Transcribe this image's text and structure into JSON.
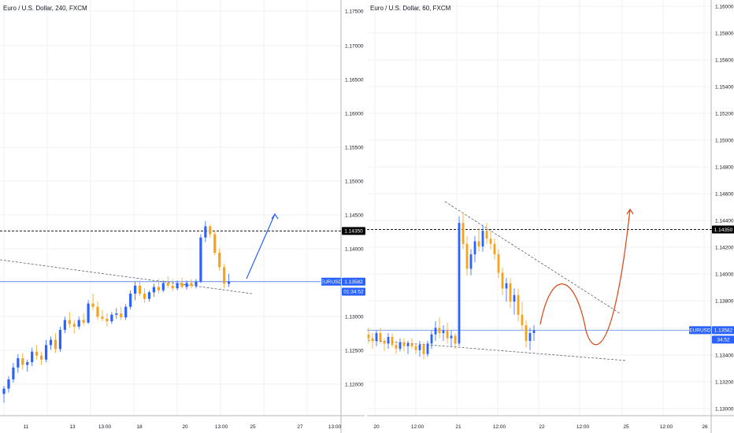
{
  "chart_data": [
    {
      "type": "candlestick",
      "title": "Euro / U.S. Dollar, 240, FXCM",
      "yticks": [
        "1.17500",
        "1.17000",
        "1.16500",
        "1.16000",
        "1.15500",
        "1.15000",
        "1.14500",
        "1.14000",
        "1.13500",
        "1.13000",
        "1.12500",
        "1.12000"
      ],
      "xticks": [
        "11",
        "13",
        "13:00",
        "18",
        "20",
        "13:00",
        "25",
        "27",
        "13:00"
      ],
      "ylim": [
        1.1155,
        1.1785
      ],
      "resistance_level": 1.1435,
      "current_price": 1.13582,
      "badges": [
        {
          "label": "1.14350",
          "value": 1.1435,
          "color": "#000000"
        },
        {
          "label": "EURUSD",
          "value": 1.13582,
          "color": "#2962ff"
        },
        {
          "label": "1.13582",
          "value": 1.13582,
          "color": "#2962ff"
        },
        {
          "label": "01:34:52",
          "value": 1.1343,
          "color": "#2962ff"
        }
      ],
      "candles": [
        [
          1.1188,
          1.12,
          1.1175,
          1.1196
        ],
        [
          1.1196,
          1.1215,
          1.119,
          1.121
        ],
        [
          1.121,
          1.1235,
          1.1205,
          1.1228
        ],
        [
          1.1228,
          1.1248,
          1.122,
          1.1242
        ],
        [
          1.1242,
          1.125,
          1.1225,
          1.1232
        ],
        [
          1.1232,
          1.124,
          1.1222,
          1.1236
        ],
        [
          1.1236,
          1.1258,
          1.123,
          1.1252
        ],
        [
          1.1252,
          1.1262,
          1.124,
          1.1246
        ],
        [
          1.1246,
          1.1252,
          1.1232,
          1.124
        ],
        [
          1.124,
          1.127,
          1.1236,
          1.1262
        ],
        [
          1.1262,
          1.1275,
          1.1255,
          1.127
        ],
        [
          1.127,
          1.128,
          1.125,
          1.1256
        ],
        [
          1.1256,
          1.129,
          1.1252,
          1.1285
        ],
        [
          1.1285,
          1.1305,
          1.128,
          1.13
        ],
        [
          1.13,
          1.1312,
          1.1288,
          1.1294
        ],
        [
          1.1294,
          1.13,
          1.128,
          1.129
        ],
        [
          1.129,
          1.1305,
          1.1286,
          1.13
        ],
        [
          1.13,
          1.131,
          1.1292,
          1.1296
        ],
        [
          1.1296,
          1.133,
          1.1294,
          1.1325
        ],
        [
          1.1325,
          1.134,
          1.1315,
          1.132
        ],
        [
          1.132,
          1.1328,
          1.13,
          1.1305
        ],
        [
          1.1305,
          1.1315,
          1.1298,
          1.1302
        ],
        [
          1.1302,
          1.131,
          1.129,
          1.1298
        ],
        [
          1.1298,
          1.1312,
          1.1294,
          1.1308
        ],
        [
          1.1308,
          1.1318,
          1.1302,
          1.131
        ],
        [
          1.131,
          1.132,
          1.13,
          1.1304
        ],
        [
          1.1304,
          1.1324,
          1.13,
          1.132
        ],
        [
          1.132,
          1.1345,
          1.1316,
          1.134
        ],
        [
          1.134,
          1.1358,
          1.133,
          1.1352
        ],
        [
          1.1352,
          1.136,
          1.1336,
          1.134
        ],
        [
          1.134,
          1.1348,
          1.1326,
          1.1332
        ],
        [
          1.1332,
          1.1345,
          1.1328,
          1.1342
        ],
        [
          1.1342,
          1.1355,
          1.1335,
          1.135
        ],
        [
          1.135,
          1.1362,
          1.134,
          1.1345
        ],
        [
          1.1345,
          1.136,
          1.1342,
          1.1356
        ],
        [
          1.1356,
          1.1366,
          1.1348,
          1.1352
        ],
        [
          1.1352,
          1.1362,
          1.1344,
          1.1348
        ],
        [
          1.1348,
          1.136,
          1.1345,
          1.1356
        ],
        [
          1.1356,
          1.1364,
          1.1348,
          1.135
        ],
        [
          1.135,
          1.136,
          1.1346,
          1.1356
        ],
        [
          1.1356,
          1.1362,
          1.1348,
          1.1352
        ],
        [
          1.1352,
          1.1362,
          1.1348,
          1.1358
        ],
        [
          1.1358,
          1.143,
          1.1356,
          1.1425
        ],
        [
          1.1425,
          1.145,
          1.1418,
          1.1442
        ],
        [
          1.1442,
          1.1445,
          1.1425,
          1.143
        ],
        [
          1.143,
          1.1435,
          1.1398,
          1.1402
        ],
        [
          1.1402,
          1.1408,
          1.1375,
          1.138
        ],
        [
          1.138,
          1.1385,
          1.1348,
          1.1355
        ],
        [
          1.1355,
          1.137,
          1.135,
          1.1358
        ]
      ],
      "annotations": [
        "resistance dashed line",
        "descending dashed trendline",
        "projection arrow up"
      ]
    },
    {
      "type": "candlestick",
      "title": "Euro / U.S. Dollar, 60, FXCM",
      "yticks": [
        "1.16000",
        "1.15800",
        "1.15600",
        "1.15400",
        "1.15200",
        "1.15000",
        "1.14800",
        "1.14600",
        "1.14400",
        "1.14200",
        "1.14000",
        "1.13800",
        "1.13600",
        "1.13400",
        "1.13200",
        "1.13000"
      ],
      "xticks": [
        "20",
        "12:00",
        "21",
        "12:00",
        "22",
        "12:00",
        "25",
        "12:00",
        "26"
      ],
      "ylim": [
        1.1293,
        1.161
      ],
      "resistance_level": 1.1435,
      "current_price": 1.13582,
      "badges": [
        {
          "label": "1.14350",
          "value": 1.1435,
          "color": "#000000"
        },
        {
          "label": "EURUSD",
          "value": 1.13582,
          "color": "#2962ff"
        },
        {
          "label": "1.13582",
          "value": 1.13582,
          "color": "#2962ff"
        },
        {
          "label": "34:52",
          "value": 1.1351,
          "color": "#2962ff"
        }
      ],
      "candles": [
        [
          1.1355,
          1.136,
          1.1348,
          1.1352
        ],
        [
          1.1352,
          1.1356,
          1.1344,
          1.135
        ],
        [
          1.135,
          1.1358,
          1.1346,
          1.1356
        ],
        [
          1.1356,
          1.136,
          1.1348,
          1.135
        ],
        [
          1.135,
          1.1352,
          1.1342,
          1.1348
        ],
        [
          1.1348,
          1.1356,
          1.1344,
          1.1353
        ],
        [
          1.1353,
          1.1356,
          1.1345,
          1.1347
        ],
        [
          1.1347,
          1.135,
          1.134,
          1.1344
        ],
        [
          1.1344,
          1.1352,
          1.1342,
          1.1349
        ],
        [
          1.1349,
          1.1352,
          1.1342,
          1.1346
        ],
        [
          1.1346,
          1.135,
          1.134,
          1.1348
        ],
        [
          1.1348,
          1.1352,
          1.1344,
          1.1346
        ],
        [
          1.1346,
          1.1348,
          1.134,
          1.1343
        ],
        [
          1.1343,
          1.135,
          1.1338,
          1.1347
        ],
        [
          1.1347,
          1.1349,
          1.1336,
          1.134
        ],
        [
          1.134,
          1.135,
          1.1338,
          1.1348
        ],
        [
          1.1348,
          1.1358,
          1.1344,
          1.1355
        ],
        [
          1.1355,
          1.1365,
          1.135,
          1.136
        ],
        [
          1.136,
          1.1368,
          1.1352,
          1.1356
        ],
        [
          1.1356,
          1.1362,
          1.135,
          1.1358
        ],
        [
          1.1358,
          1.1364,
          1.1348,
          1.1352
        ],
        [
          1.1352,
          1.1358,
          1.1346,
          1.1354
        ],
        [
          1.1354,
          1.1356,
          1.1344,
          1.1348
        ],
        [
          1.1348,
          1.1445,
          1.1346,
          1.144
        ],
        [
          1.144,
          1.1448,
          1.142,
          1.1424
        ],
        [
          1.1424,
          1.143,
          1.14,
          1.1405
        ],
        [
          1.1405,
          1.142,
          1.14,
          1.1416
        ],
        [
          1.1416,
          1.143,
          1.141,
          1.1426
        ],
        [
          1.1426,
          1.1436,
          1.1418,
          1.1422
        ],
        [
          1.1422,
          1.1438,
          1.1418,
          1.1434
        ],
        [
          1.1434,
          1.144,
          1.1424,
          1.1428
        ],
        [
          1.1428,
          1.1434,
          1.142,
          1.1424
        ],
        [
          1.1424,
          1.1428,
          1.1412,
          1.1416
        ],
        [
          1.1416,
          1.142,
          1.1398,
          1.1402
        ],
        [
          1.1402,
          1.1406,
          1.1385,
          1.139
        ],
        [
          1.139,
          1.1398,
          1.138,
          1.1394
        ],
        [
          1.1394,
          1.1398,
          1.1375,
          1.138
        ],
        [
          1.138,
          1.139,
          1.137,
          1.1385
        ],
        [
          1.1385,
          1.139,
          1.1365,
          1.137
        ],
        [
          1.137,
          1.138,
          1.1358,
          1.1362
        ],
        [
          1.1362,
          1.1366,
          1.1345,
          1.135
        ],
        [
          1.135,
          1.136,
          1.1343,
          1.1356
        ],
        [
          1.1356,
          1.1362,
          1.135,
          1.1358
        ]
      ],
      "annotations": [
        "resistance dashed line",
        "descending dashed channel",
        "projection curve down then up"
      ]
    }
  ]
}
